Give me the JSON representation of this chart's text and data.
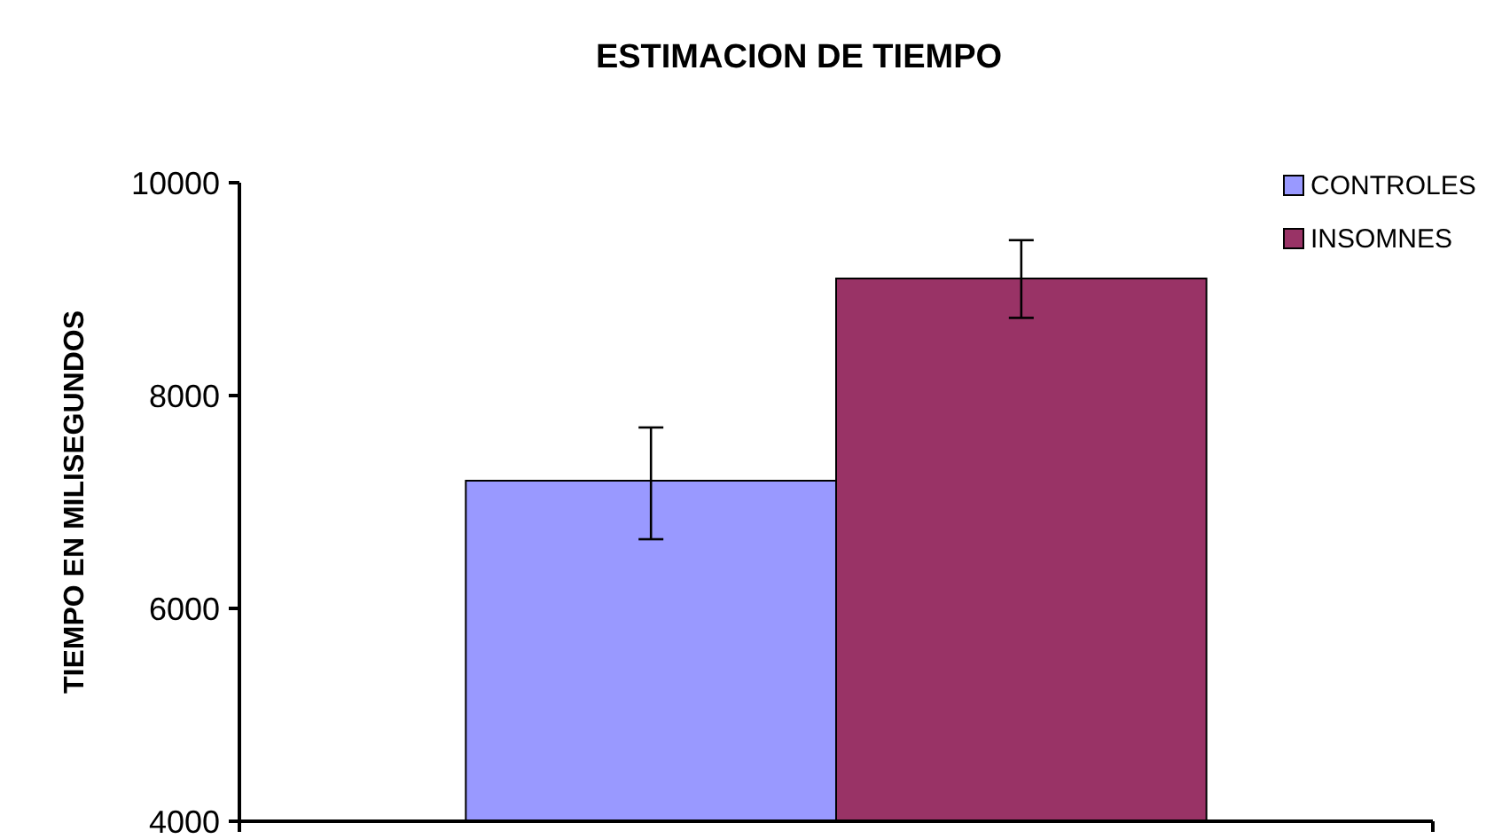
{
  "chart_data": {
    "type": "bar",
    "title": "ESTIMACION DE TIEMPO",
    "ylabel": "TIEMPO EN MILISEGUNDOS",
    "categories": [
      null
    ],
    "series": [
      {
        "name": "CONTROLES",
        "color": "#9999ff",
        "values": [
          7200
        ],
        "errors": [
          [
            6650,
            7700
          ]
        ]
      },
      {
        "name": "INSOMNES",
        "color": "#993366",
        "values": [
          9100
        ],
        "errors": [
          [
            8730,
            9460
          ]
        ]
      }
    ],
    "ylim": [
      4000,
      10000
    ],
    "yticks": [
      4000,
      6000,
      8000,
      10000
    ],
    "legend": "top right"
  }
}
